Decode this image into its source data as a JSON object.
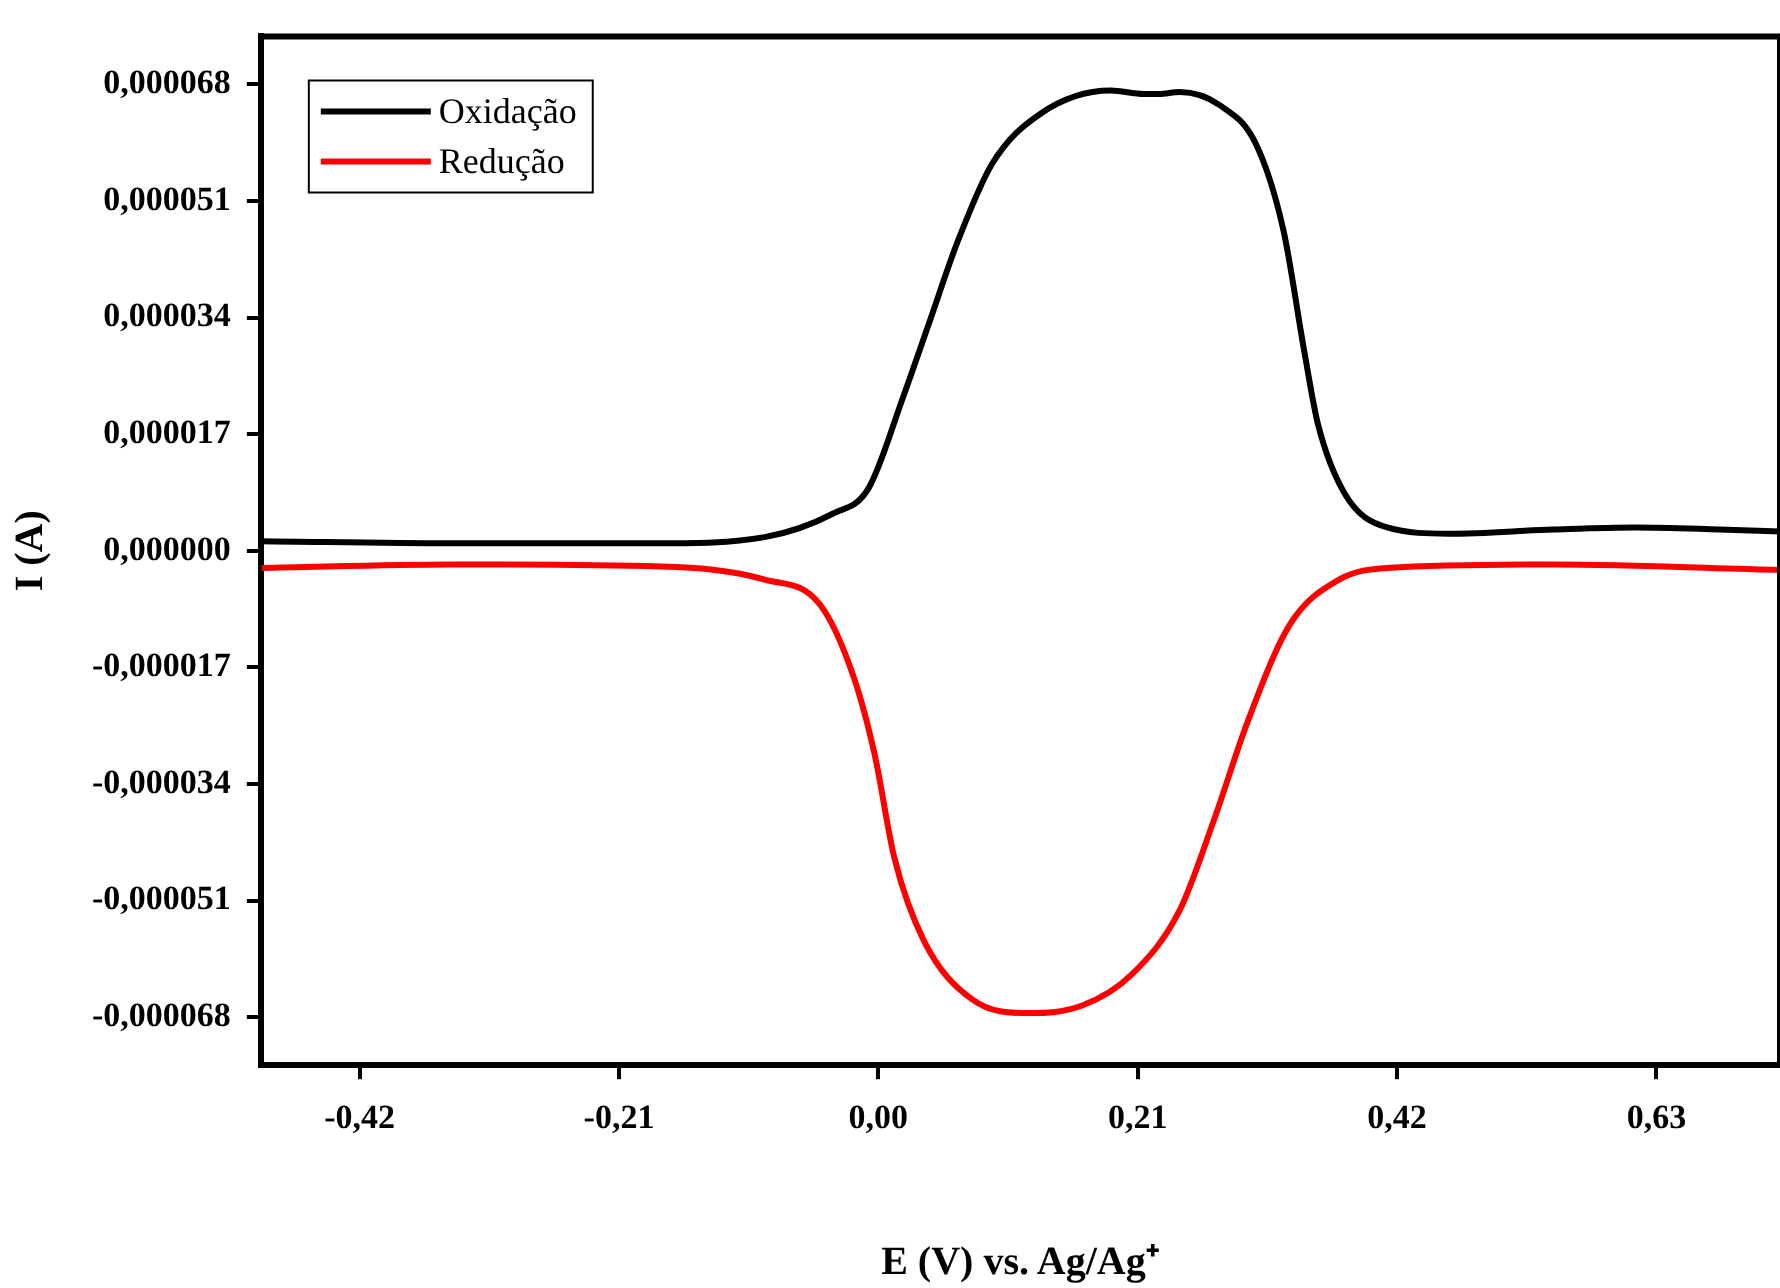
{
  "chart_data": {
    "type": "line",
    "xlabel": "E (V) vs. Ag/Ag⁺",
    "ylabel": "I (A)",
    "xlim": [
      -0.5,
      0.73
    ],
    "xticks": [
      {
        "value": -0.42,
        "label": "-0,42"
      },
      {
        "value": -0.21,
        "label": "-0,21"
      },
      {
        "value": 0,
        "label": "0,00"
      },
      {
        "value": 0.21,
        "label": "0,21"
      },
      {
        "value": 0.42,
        "label": "0,42"
      },
      {
        "value": 0.63,
        "label": "0,63"
      }
    ],
    "ylim": [
      -7.5e-05,
      7.5e-05
    ],
    "yticks": [
      {
        "value": -6.8e-05,
        "label": "-0,000068"
      },
      {
        "value": -5.1e-05,
        "label": "-0,000051"
      },
      {
        "value": -3.4e-05,
        "label": "-0,000034"
      },
      {
        "value": -1.7e-05,
        "label": "-0,000017"
      },
      {
        "value": 0,
        "label": "0,000000"
      },
      {
        "value": 1.7e-05,
        "label": "0,000017"
      },
      {
        "value": 3.4e-05,
        "label": "0,000034"
      },
      {
        "value": 5.1e-05,
        "label": "0,000051"
      },
      {
        "value": 6.8e-05,
        "label": "0,000068"
      }
    ],
    "grid": false,
    "legend": "top left",
    "marker": "none",
    "line_style": "solid",
    "series": [
      {
        "name": "Oxidação",
        "color": "#000000",
        "x": [
          -0.499,
          -0.345,
          -0.176,
          -0.092,
          -0.037,
          -0.008,
          0.02,
          0.042,
          0.064,
          0.092,
          0.131,
          0.188,
          0.215,
          0.227,
          0.244,
          0.277,
          0.306,
          0.328,
          0.345,
          0.356,
          0.378,
          0.412,
          0.462,
          0.546,
          0.613,
          0.681,
          0.73
        ],
        "values": [
          1.4e-06,
          1.1e-06,
          1.1e-06,
          2e-06,
          5.4e-06,
          9.1e-06,
          2.24e-05,
          3.37e-05,
          4.5e-05,
          5.64e-05,
          6.37e-05,
          6.71e-05,
          6.66e-05,
          6.66e-05,
          6.69e-05,
          6.49e-05,
          5.92e-05,
          4.67e-05,
          2.89e-05,
          1.84e-05,
          8.2e-06,
          3.4e-06,
          2.5e-06,
          3.1e-06,
          3.4e-06,
          3.1e-06,
          2.8e-06
        ]
      },
      {
        "name": "Redução",
        "color": "#ff0000",
        "x": [
          -0.499,
          -0.345,
          -0.176,
          -0.092,
          -0.047,
          -0.02,
          -0.003,
          0.013,
          0.037,
          0.076,
          0.121,
          0.165,
          0.205,
          0.244,
          0.272,
          0.299,
          0.333,
          0.373,
          0.412,
          0.546,
          0.73
        ],
        "values": [
          -2.5e-06,
          -2e-06,
          -2.3e-06,
          -4.2e-06,
          -7.9e-06,
          -1.84e-05,
          -2.97e-05,
          -4.48e-05,
          -5.69e-05,
          -6.54e-05,
          -6.74e-05,
          -6.63e-05,
          -6.18e-05,
          -5.24e-05,
          -3.91e-05,
          -2.49e-05,
          -1.08e-05,
          -4.2e-06,
          -2.5e-06,
          -2e-06,
          -2.8e-06
        ]
      }
    ]
  }
}
